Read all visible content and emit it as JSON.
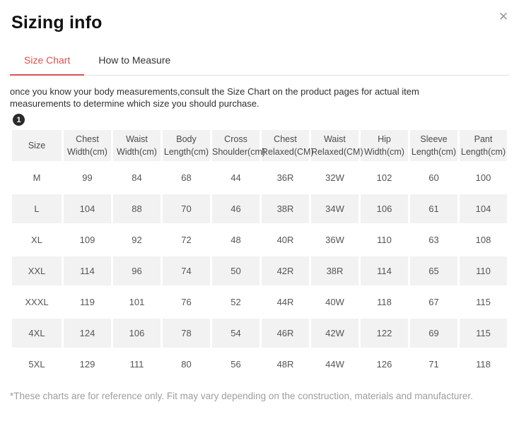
{
  "modal": {
    "title": "Sizing info",
    "close_glyph": "✕"
  },
  "tabs": [
    {
      "label": "Size Chart",
      "active": true
    },
    {
      "label": "How to Measure",
      "active": false
    }
  ],
  "description": "once you know your body measurements,consult the Size Chart on the product pages for actual item measurements to determine which size you should purchase.",
  "step_badge": "1",
  "colors": {
    "accent_red": "#d9534f",
    "row_shade": "#f2f2f2",
    "badge_black": "#2b2b2b",
    "footnote_gray": "#9b9f9e"
  },
  "size_table": {
    "columns": [
      "Size",
      "Chest\nWidth(cm)",
      "Waist\nWidth(cm)",
      "Body\nLength(cm)",
      "Cross\nShoulder(cm)",
      "Chest\nRelaxed(CM)",
      "Waist\nRelaxed(CM)",
      "Hip\nWidth(cm)",
      "Sleeve\nLength(cm)",
      "Pant\nLength(cm)"
    ],
    "rows": [
      [
        "M",
        "99",
        "84",
        "68",
        "44",
        "36R",
        "32W",
        "102",
        "60",
        "100"
      ],
      [
        "L",
        "104",
        "88",
        "70",
        "46",
        "38R",
        "34W",
        "106",
        "61",
        "104"
      ],
      [
        "XL",
        "109",
        "92",
        "72",
        "48",
        "40R",
        "36W",
        "110",
        "63",
        "108"
      ],
      [
        "XXL",
        "114",
        "96",
        "74",
        "50",
        "42R",
        "38R",
        "114",
        "65",
        "110"
      ],
      [
        "XXXL",
        "119",
        "101",
        "76",
        "52",
        "44R",
        "40W",
        "118",
        "67",
        "115"
      ],
      [
        "4XL",
        "124",
        "106",
        "78",
        "54",
        "46R",
        "42W",
        "122",
        "69",
        "115"
      ],
      [
        "5XL",
        "129",
        "111",
        "80",
        "56",
        "48R",
        "44W",
        "126",
        "71",
        "118"
      ]
    ]
  },
  "footnote": "*These charts are for reference only. Fit may vary depending on the construction, materials and manufacturer."
}
